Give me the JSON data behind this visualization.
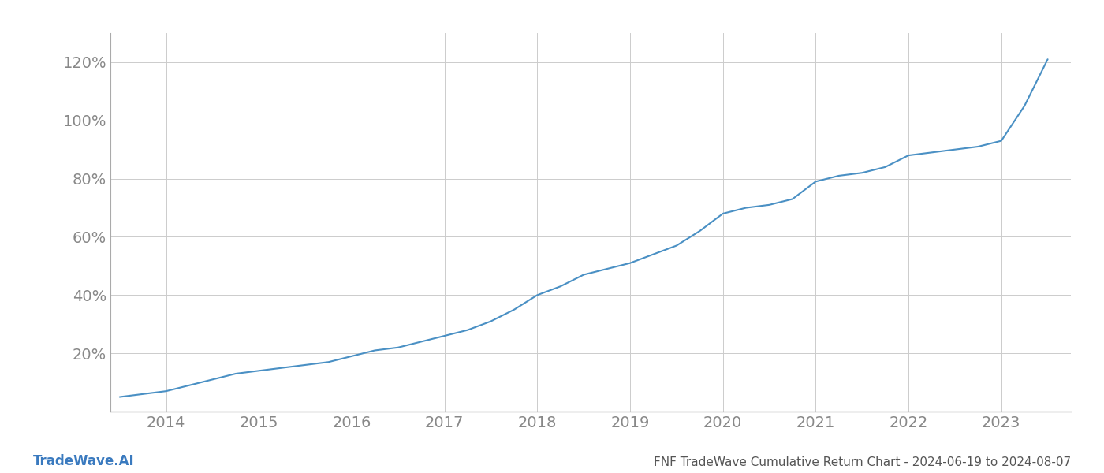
{
  "title": "FNF TradeWave Cumulative Return Chart - 2024-06-19 to 2024-08-07",
  "watermark": "TradeWave.AI",
  "line_color": "#4a90c4",
  "background_color": "#ffffff",
  "grid_color": "#cccccc",
  "x_years": [
    2014,
    2015,
    2016,
    2017,
    2018,
    2019,
    2020,
    2021,
    2022,
    2023
  ],
  "x_data": [
    2013.5,
    2013.75,
    2014.0,
    2014.25,
    2014.5,
    2014.75,
    2015.0,
    2015.25,
    2015.5,
    2015.75,
    2016.0,
    2016.25,
    2016.5,
    2016.75,
    2017.0,
    2017.25,
    2017.5,
    2017.75,
    2018.0,
    2018.25,
    2018.5,
    2018.75,
    2019.0,
    2019.25,
    2019.5,
    2019.75,
    2020.0,
    2020.25,
    2020.5,
    2020.75,
    2021.0,
    2021.25,
    2021.5,
    2021.75,
    2022.0,
    2022.25,
    2022.5,
    2022.75,
    2023.0,
    2023.25,
    2023.5
  ],
  "y_data": [
    5,
    6,
    7,
    9,
    11,
    13,
    14,
    15,
    16,
    17,
    19,
    21,
    22,
    24,
    26,
    28,
    31,
    35,
    40,
    43,
    47,
    49,
    51,
    54,
    57,
    62,
    68,
    70,
    71,
    73,
    79,
    81,
    82,
    84,
    88,
    89,
    90,
    91,
    93,
    105,
    121
  ],
  "yticks": [
    20,
    40,
    60,
    80,
    100,
    120
  ],
  "ylim": [
    0,
    130
  ],
  "xlim": [
    2013.4,
    2023.75
  ],
  "tick_label_color": "#888888",
  "title_color": "#555555",
  "watermark_color": "#3a7abf",
  "line_width": 1.5,
  "tick_fontsize": 14,
  "title_fontsize": 11,
  "watermark_fontsize": 12
}
